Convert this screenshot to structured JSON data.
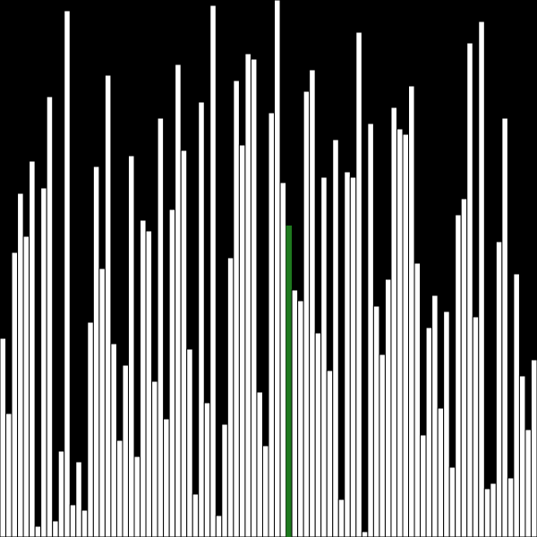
{
  "chart_data": {
    "type": "bar",
    "ylim": [
      0,
      600
    ],
    "values": [
      222,
      138,
      318,
      384,
      336,
      420,
      12,
      390,
      492,
      18,
      96,
      588,
      36,
      84,
      30,
      240,
      414,
      300,
      516,
      216,
      108,
      192,
      426,
      90,
      354,
      342,
      174,
      468,
      132,
      366,
      528,
      432,
      210,
      48,
      486,
      150,
      594,
      24,
      126,
      312,
      510,
      438,
      540,
      534,
      162,
      102,
      474,
      600,
      396,
      348,
      276,
      264,
      498,
      522,
      228,
      402,
      186,
      444,
      42,
      408,
      402,
      564,
      6,
      462,
      258,
      204,
      288,
      480,
      456,
      450,
      504,
      306,
      114,
      234,
      270,
      144,
      252,
      78,
      360,
      378,
      552,
      246,
      576,
      54,
      60,
      330,
      468,
      66,
      294,
      180,
      120,
      198
    ],
    "highlight_index": 49,
    "colors": {
      "background": "#000000",
      "bar_fill": "#ffffff",
      "bar_stroke": "#000000",
      "highlight": "#1e7a1e"
    }
  }
}
